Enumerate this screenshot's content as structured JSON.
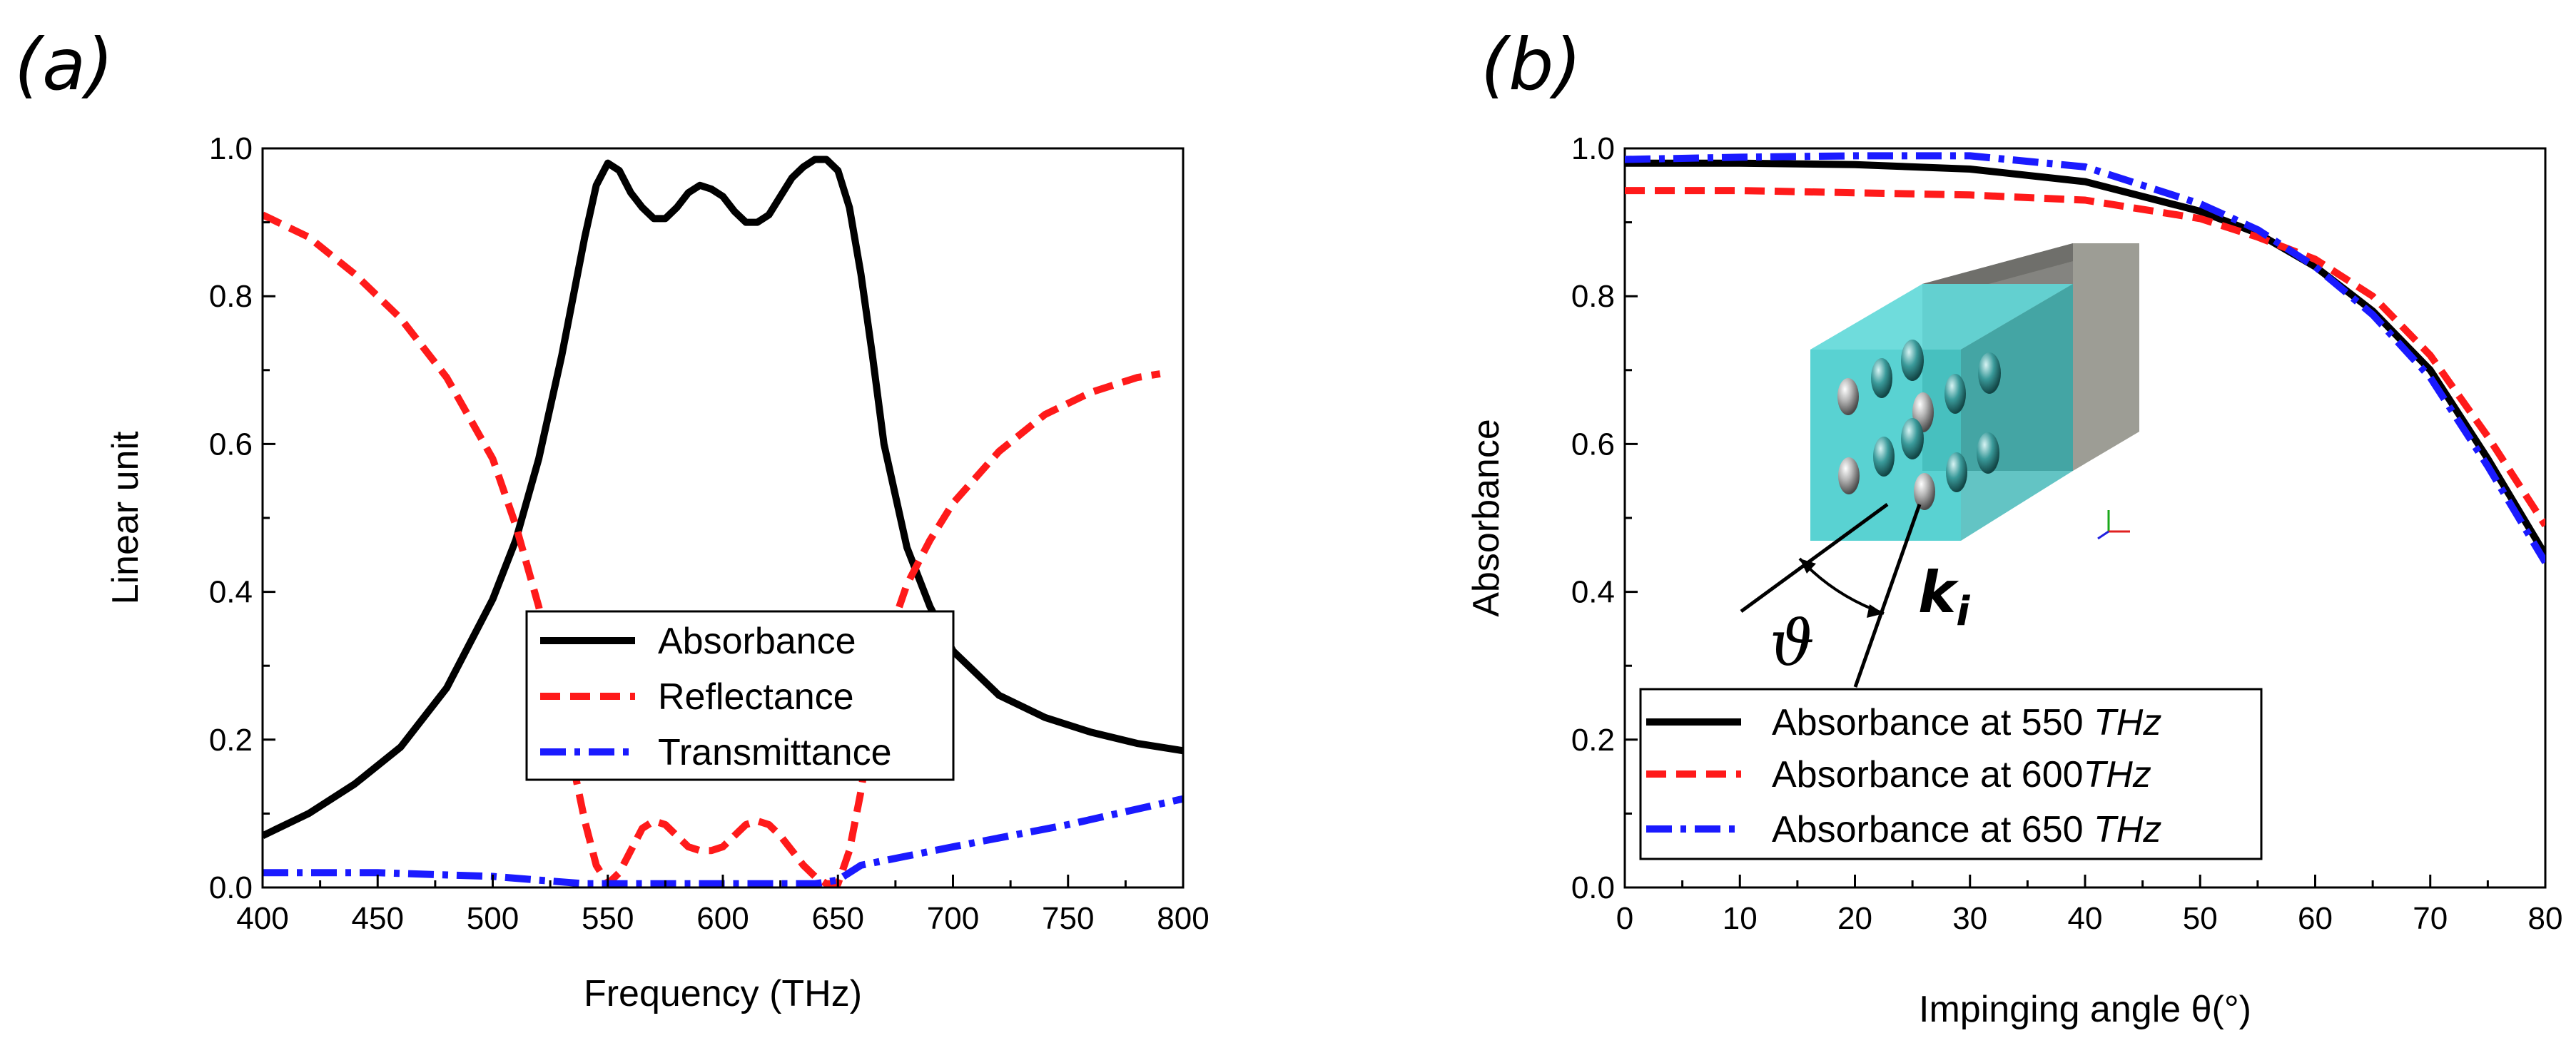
{
  "chart_data": [
    {
      "type": "line",
      "panel_label": "(a)",
      "xlabel": "Frequency (THz)",
      "ylabel": "Linear unit",
      "xlim": [
        400,
        800
      ],
      "ylim": [
        0,
        1.0
      ],
      "xticks": [
        400,
        450,
        500,
        550,
        600,
        650,
        700,
        750,
        800
      ],
      "yticks": [
        "0.0",
        "0.2",
        "0.4",
        "0.6",
        "0.8",
        "1.0"
      ],
      "legend_position": "bottom-center",
      "series": [
        {
          "name": "Absorbance",
          "color": "#000000",
          "style": "solid",
          "x": [
            400,
            420,
            440,
            460,
            480,
            500,
            510,
            520,
            530,
            540,
            545,
            550,
            555,
            560,
            565,
            570,
            575,
            580,
            585,
            590,
            595,
            600,
            605,
            610,
            615,
            620,
            625,
            630,
            635,
            640,
            645,
            650,
            655,
            660,
            665,
            670,
            680,
            690,
            700,
            720,
            740,
            760,
            780,
            800
          ],
          "y": [
            0.07,
            0.1,
            0.14,
            0.19,
            0.27,
            0.39,
            0.47,
            0.58,
            0.72,
            0.88,
            0.95,
            0.98,
            0.97,
            0.94,
            0.92,
            0.905,
            0.905,
            0.92,
            0.94,
            0.95,
            0.945,
            0.935,
            0.915,
            0.9,
            0.9,
            0.91,
            0.935,
            0.96,
            0.975,
            0.985,
            0.985,
            0.97,
            0.92,
            0.83,
            0.72,
            0.6,
            0.46,
            0.38,
            0.32,
            0.26,
            0.23,
            0.21,
            0.195,
            0.185
          ]
        },
        {
          "name": "Reflectance",
          "color": "#ff1a1a",
          "style": "dashed",
          "x": [
            400,
            420,
            440,
            460,
            480,
            500,
            510,
            520,
            530,
            540,
            545,
            550,
            555,
            560,
            565,
            570,
            575,
            580,
            585,
            590,
            595,
            600,
            605,
            610,
            615,
            620,
            625,
            630,
            635,
            640,
            645,
            650,
            655,
            660,
            665,
            670,
            680,
            690,
            700,
            720,
            740,
            760,
            780,
            790
          ],
          "y": [
            0.91,
            0.88,
            0.83,
            0.77,
            0.69,
            0.58,
            0.49,
            0.38,
            0.24,
            0.09,
            0.03,
            0.005,
            0.02,
            0.05,
            0.08,
            0.09,
            0.085,
            0.07,
            0.055,
            0.05,
            0.05,
            0.055,
            0.07,
            0.085,
            0.09,
            0.085,
            0.07,
            0.05,
            0.03,
            0.015,
            0.005,
            0.005,
            0.05,
            0.13,
            0.23,
            0.32,
            0.41,
            0.47,
            0.52,
            0.59,
            0.64,
            0.67,
            0.69,
            0.695
          ]
        },
        {
          "name": "Transmittance",
          "color": "#1a1aff",
          "style": "dashdot",
          "x": [
            400,
            450,
            500,
            540,
            560,
            600,
            640,
            650,
            660,
            700,
            750,
            800
          ],
          "y": [
            0.02,
            0.02,
            0.015,
            0.005,
            0.005,
            0.005,
            0.005,
            0.01,
            0.03,
            0.055,
            0.085,
            0.12
          ]
        }
      ]
    },
    {
      "type": "line",
      "panel_label": "(b)",
      "xlabel": "Impinging angle θ(°)",
      "ylabel": "Absorbance",
      "xlim": [
        0,
        80
      ],
      "ylim": [
        0,
        1.0
      ],
      "xticks": [
        0,
        10,
        20,
        30,
        40,
        50,
        60,
        70,
        80
      ],
      "yticks": [
        "0.0",
        "0.2",
        "0.4",
        "0.6",
        "0.8",
        "1.0"
      ],
      "legend_position": "bottom-left",
      "series": [
        {
          "name": "Absorbance at 550 THz",
          "legend_plain": "Absorbance at 550 ",
          "legend_italic": "THz",
          "color": "#000000",
          "style": "solid",
          "x": [
            0,
            10,
            20,
            30,
            40,
            50,
            55,
            60,
            65,
            70,
            75,
            80
          ],
          "y": [
            0.98,
            0.98,
            0.978,
            0.972,
            0.955,
            0.915,
            0.885,
            0.84,
            0.78,
            0.7,
            0.58,
            0.45
          ]
        },
        {
          "name": "Absorbance at 600THz",
          "legend_plain": "Absorbance at 600",
          "legend_italic": "THz",
          "color": "#ff1a1a",
          "style": "dashed",
          "x": [
            0,
            10,
            20,
            30,
            40,
            50,
            55,
            60,
            65,
            70,
            75,
            80
          ],
          "y": [
            0.943,
            0.943,
            0.94,
            0.937,
            0.93,
            0.905,
            0.88,
            0.85,
            0.8,
            0.72,
            0.61,
            0.49
          ]
        },
        {
          "name": "Absorbance at 650 THz",
          "legend_plain": "Absorbance at 650 ",
          "legend_italic": "THz",
          "color": "#1a1aff",
          "style": "dashdot",
          "x": [
            0,
            10,
            20,
            30,
            40,
            50,
            55,
            60,
            65,
            70,
            75,
            80
          ],
          "y": [
            0.985,
            0.988,
            0.99,
            0.99,
            0.975,
            0.925,
            0.89,
            0.84,
            0.775,
            0.69,
            0.57,
            0.44
          ]
        }
      ],
      "inset": {
        "angle_symbol": "ϑ",
        "wavevector_symbol": "k",
        "wavevector_subscript": "i",
        "cube_color": "#3cc8c8",
        "back_block_color": "#8a8a82"
      }
    }
  ]
}
